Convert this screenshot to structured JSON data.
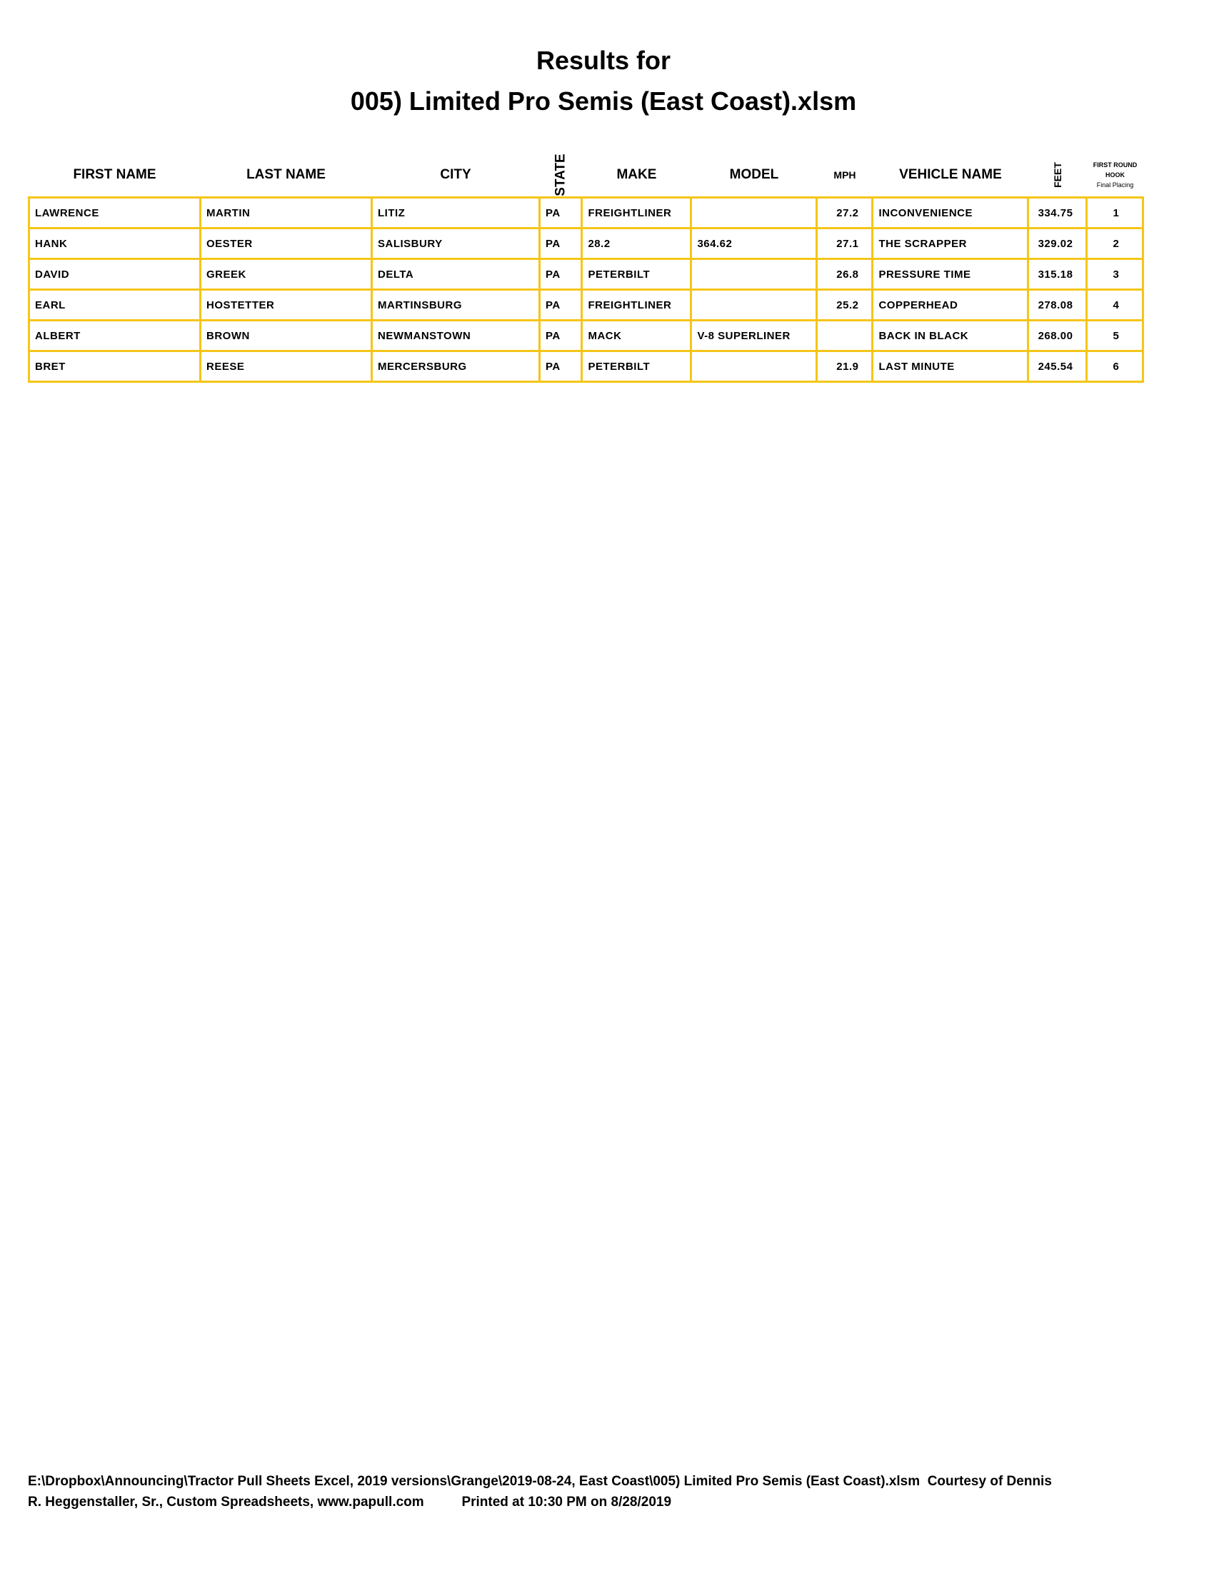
{
  "title_line1": "Results for",
  "title_line2": "005) Limited Pro Semis (East Coast).xlsm",
  "columns": {
    "first": "FIRST NAME",
    "last": "LAST NAME",
    "city": "CITY",
    "state": "STATE",
    "make": "MAKE",
    "model": "MODEL",
    "mph": "MPH",
    "vehicle": "VEHICLE NAME",
    "feet": "FEET",
    "hook_1": "FIRST ROUND",
    "hook_2": "HOOK",
    "hook_3": "Final Placing"
  },
  "rows": [
    {
      "first": "LAWRENCE",
      "last": "MARTIN",
      "city": "LITIZ",
      "state": "PA",
      "make": "FREIGHTLINER",
      "model": "",
      "mph": "27.2",
      "vehicle": "INCONVENIENCE",
      "feet": "334.75",
      "place": "1"
    },
    {
      "first": "HANK",
      "last": "OESTER",
      "city": "SALISBURY",
      "state": "PA",
      "make": "28.2",
      "model": "364.62",
      "mph": "27.1",
      "vehicle": "THE SCRAPPER",
      "feet": "329.02",
      "place": "2"
    },
    {
      "first": "DAVID",
      "last": "GREEK",
      "city": "DELTA",
      "state": "PA",
      "make": "PETERBILT",
      "model": "",
      "mph": "26.8",
      "vehicle": "PRESSURE TIME",
      "feet": "315.18",
      "place": "3"
    },
    {
      "first": "EARL",
      "last": "HOSTETTER",
      "city": "MARTINSBURG",
      "state": "PA",
      "make": "FREIGHTLINER",
      "model": "",
      "mph": "25.2",
      "vehicle": "COPPERHEAD",
      "feet": "278.08",
      "place": "4"
    },
    {
      "first": "ALBERT",
      "last": "BROWN",
      "city": "NEWMANSTOWN",
      "state": "PA",
      "make": "MACK",
      "model": "V-8 SUPERLINER",
      "mph": "",
      "vehicle": "BACK IN BLACK",
      "feet": "268.00",
      "place": "5"
    },
    {
      "first": "BRET",
      "last": "REESE",
      "city": "MERCERSBURG",
      "state": "PA",
      "make": "PETERBILT",
      "model": "",
      "mph": "21.9",
      "vehicle": "LAST MINUTE",
      "feet": "245.54",
      "place": "6"
    }
  ],
  "footer_line1": "E:\\Dropbox\\Announcing\\Tractor Pull Sheets Excel, 2019 versions\\Grange\\2019-08-24, East Coast\\005) Limited Pro Semis (East Coast).xlsm  Courtesy of Dennis",
  "footer_line2": "R. Heggenstaller, Sr., Custom Spreadsheets, www.papull.com          Printed at 10:30 PM on 8/28/2019",
  "border_color": "#f5c518"
}
